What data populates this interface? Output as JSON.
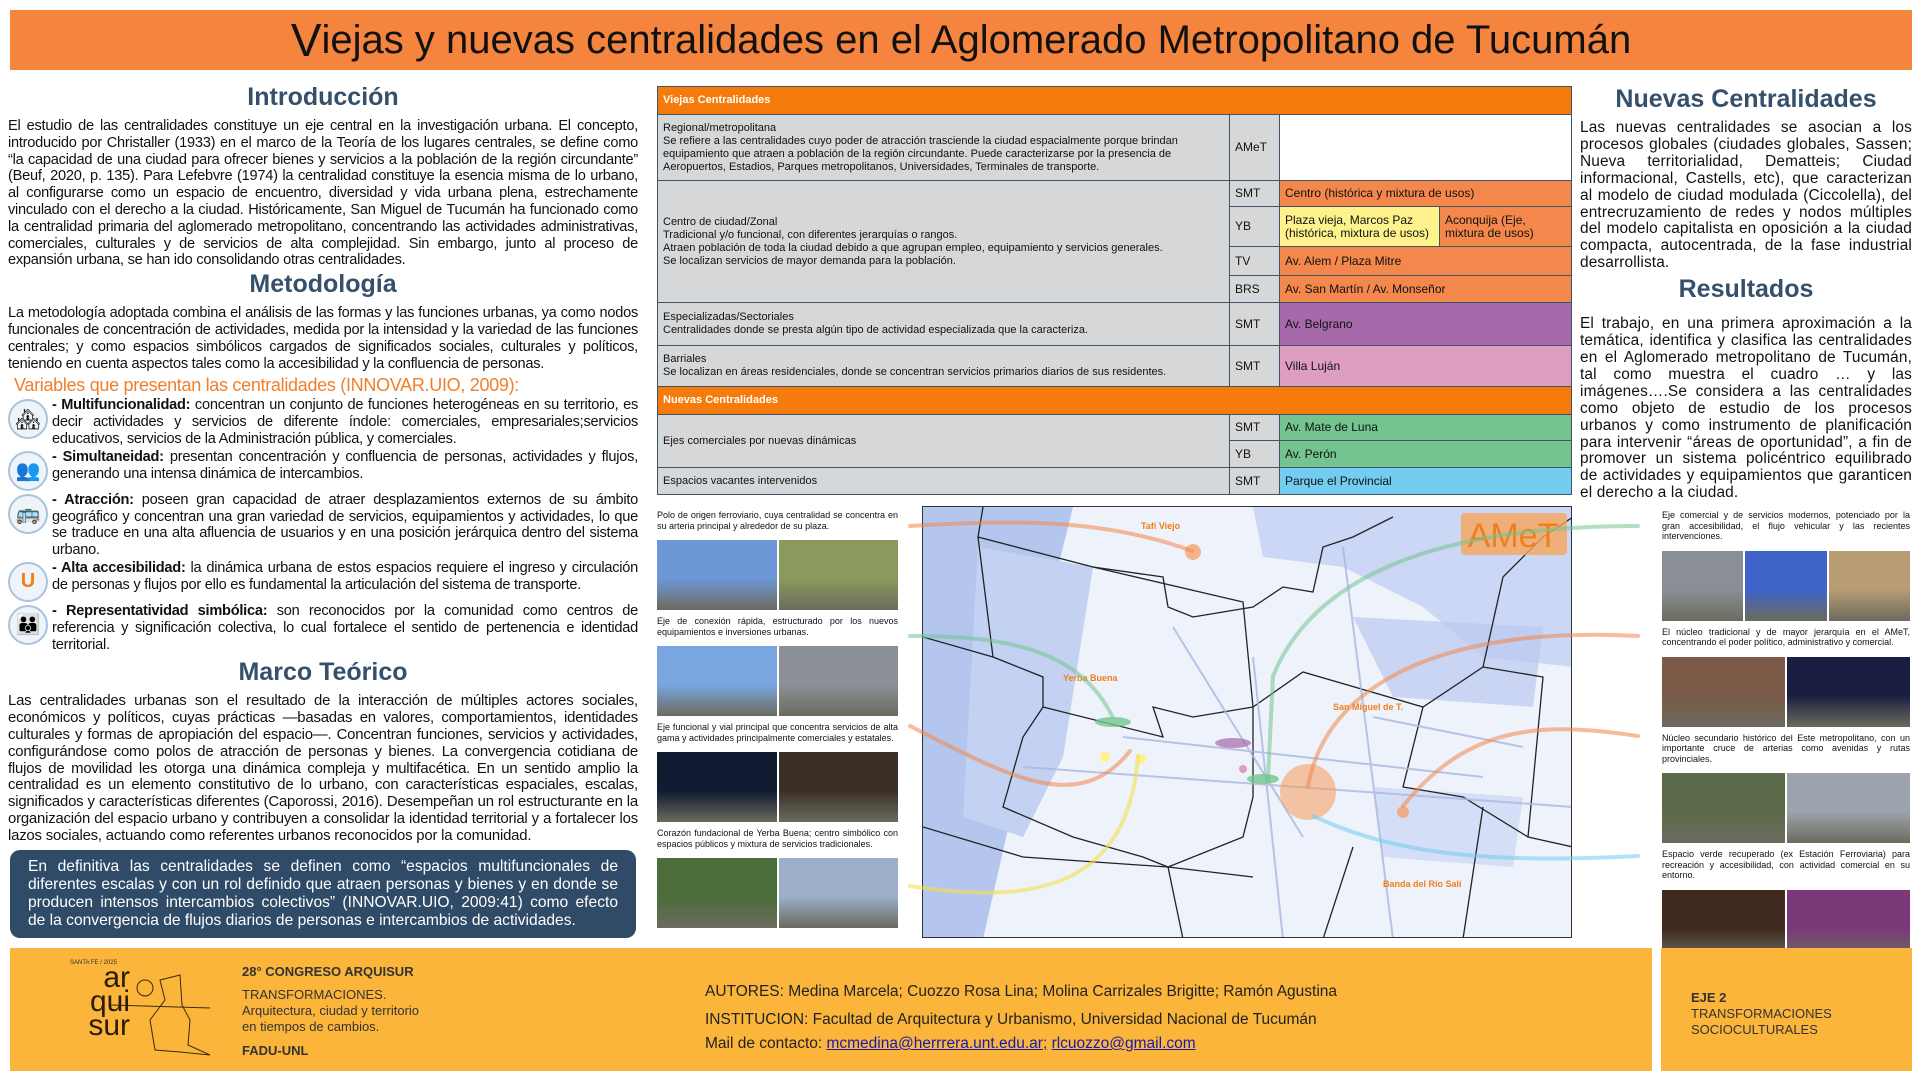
{
  "title": {
    "first_letter": "V",
    "rest": "iejas y nuevas centralidades en el Aglomerado Metropolitano de Tucumán"
  },
  "intro": {
    "heading": "Introducción",
    "text": "El estudio de las centralidades constituye un eje central en la investigación urbana. El concepto, introducido por Christaller (1933) en el marco de la Teoría de los lugares centrales, se define como “la capacidad de una ciudad para ofrecer bienes y servicios a la población de la región circundante” (Beuf, 2020, p. 135). Para Lefebvre (1974) la  centralidad constituye la esencia misma de lo urbano, al configurarse como un espacio de encuentro, diversidad y vida urbana plena, estrechamente vinculado con el derecho a la ciudad. Históricamente, San Miguel de Tucumán ha funcionado como la centralidad primaria del aglomerado metropolitano, concentrando las actividades administrativas, comerciales, culturales y de servicios de alta complejidad. Sin embargo, junto al proceso de expansión urbana, se han ido consolidando otras centralidades."
  },
  "metodologia": {
    "heading": "Metodología",
    "text": "La metodología adoptada combina el análisis de las formas y las funciones urbanas, ya como nodos funcionales de concentración de actividades, medida por la intensidad y la variedad de las funciones centrales; y como espacios simbólicos cargados de significados sociales, culturales y políticos, teniendo en cuenta aspectos tales como la accesibilidad y la confluencia de personas.",
    "variables_title": "Variables que presentan las centralidades (INNOVAR.UIO, 2009):",
    "variables": [
      {
        "icon": "buildings-icon",
        "glyph": "🏘",
        "label": "- Multifuncionalidad:",
        "text": " concentran un conjunto de funciones heterogéneas en su territorio, es decir actividades y servicios de diferente índole: comerciales, empresariales;servicios educativos, servicios de la Administración pública, y comerciales."
      },
      {
        "icon": "people-icon",
        "glyph": "👥",
        "label": "- Simultaneidad:",
        "text": " presentan concentración y confluencia de personas, actividades y flujos, generando una intensa dinámica de intercambios."
      },
      {
        "icon": "bus-icon",
        "glyph": "🚌",
        "label": "- Atracción:",
        "text": " poseen gran capacidad de atraer desplazamientos externos de su ámbito geográfico y concentran una gran variedad de servicios, equipamientos y actividades, lo que se traduce en una alta afluencia de usuarios y en una posición jerárquica dentro del sistema urbano."
      },
      {
        "icon": "magnet-icon",
        "glyph": "U",
        "label": "- Alta accesibilidad:",
        "text": " la dinámica urbana de estos espacios requiere el ingreso y circulación de personas y flujos por ello es fundamental la articulación del sistema de transporte."
      },
      {
        "icon": "community-icon",
        "glyph": "👪",
        "label": "- Representatividad simbólica:",
        "text": " son reconocidos por la comunidad como centros de referencia y significación colectiva, lo cual fortalece el sentido de pertenencia e identidad territorial."
      }
    ]
  },
  "marco": {
    "heading": "Marco Teórico",
    "text": "Las centralidades urbanas son el resultado de la interacción de múltiples actores sociales, económicos y políticos, cuyas prácticas —basadas en valores, comportamientos, identidades culturales y formas de apropiación del espacio—. Concentran funciones, servicios y actividades, configurándose como polos de atracción de personas y bienes. La convergencia cotidiana de flujos de movilidad les otorga una dinámica compleja y multifacética. En un sentido amplio la centralidad es un elemento constitutivo de lo urbano, con características espaciales, escalas, significados y características diferentes (Caporossi, 2016). Desempeñan  un rol estructurante en la organización del espacio urbano y contribuyen a consolidar la identidad territorial y a fortalecer los lazos sociales, actuando como referentes urbanos reconocidos por la comunidad.",
    "quote": "En definitiva las centralidades se definen como “espacios multifuncionales de diferentes escalas y con un rol definido que atraen personas y bienes y en donde se producen intensos intercambios colectivos” (INNOVAR.UIO, 2009:41)  como efecto de la convergencia de flujos diarios de personas e intercambios de actividades."
  },
  "table": {
    "viejas_header": "Viejas Centralidades",
    "nuevas_header": "Nuevas Centralidades",
    "regional": {
      "title": "Regional/metropolitana",
      "desc": "Se refiere a las centralidades cuyo poder de atracción trasciende la ciudad espacialmente porque brindan equipamiento que atraen a población de la región circundante. Puede caracterizarse por la presencia de Aeropuertos, Estadios,  Parques metropolitanos,  Universidades, Terminales de transporte.",
      "code": "AMeT"
    },
    "centro": {
      "title": "Centro de ciudad/Zonal",
      "desc1": "Tradicional y/o funcional, con diferentes jerarquías o rangos.",
      "desc2": "Atraen población de toda la ciudad debido a que agrupan empleo, equipamiento y servicios generales.",
      "desc3": "Se localizan servicios de mayor demanda para la población.",
      "rows": [
        {
          "code": "SMT",
          "value": "Centro (histórica y mixtura de usos)"
        },
        {
          "code": "YB",
          "value": "Plaza vieja, Marcos Paz (histórica, mixtura de usos)",
          "value2": "Aconquija (Eje, mixtura de usos)"
        },
        {
          "code": "TV",
          "value": "Av. Alem / Plaza Mitre"
        },
        {
          "code": "BRS",
          "value": "Av. San Martín / Av. Monseñor"
        }
      ]
    },
    "especializadas": {
      "title": "Especializadas/Sectoriales",
      "desc": "Centralidades donde se presta algún tipo de actividad especializada que la caracteriza.",
      "code": "SMT",
      "value": "Av. Belgrano"
    },
    "barriales": {
      "title": "Barriales",
      "desc": "Se localizan en áreas residenciales, donde se concentran servicios primarios diarios de sus residentes.",
      "code": "SMT",
      "value": "Villa Luján"
    },
    "ejes": {
      "title": "Ejes comerciales por nuevas dinámicas",
      "rows": [
        {
          "code": "SMT",
          "value": "Av. Mate de Luna"
        },
        {
          "code": "YB",
          "value": "Av. Perón"
        }
      ]
    },
    "espacios": {
      "title": "Espacios vacantes intervenidos",
      "code": "SMT",
      "value": "Parque el Provincial"
    },
    "colors": {
      "header": "#f57c0c",
      "centro": "#f4874b",
      "yb_plaza": "#fdf28c",
      "especializadas": "#a66aab",
      "barriales": "#dd9ec2",
      "ejes": "#74c490",
      "espacios": "#72cdf0",
      "gray": "#d6d7d9"
    }
  },
  "captions_left": [
    "Polo de origen ferroviario, cuya centralidad se concentra en su arteria principal y alrededor de su plaza.",
    "Eje de conexión rápida, estructurado por los nuevos equipamientos e inversiones urbanas.",
    "Eje funcional y vial principal que concentra servicios de alta gama y actividades principalmente comerciales y estatales.",
    "Corazón fundacional de Yerba Buena; centro simbólico con espacios públicos y mixtura de servicios tradicionales."
  ],
  "captions_right": [
    "Eje comercial y de servicios modernos, potenciado por la gran accesibilidad, el flujo vehicular y las recientes intervenciones.",
    "El núcleo tradicional y de mayor jerarquía en el AMeT, concentrando el poder político, administrativo y comercial.",
    "Núcleo secundario histórico del Este metropolitano, con un importante cruce de arterias como avenidas y rutas provinciales.",
    "Espacio verde recuperado (ex Estación Ferroviaria) para recreación y accesibilidad, con actividad comercial en su entorno."
  ],
  "map": {
    "badge": "AMeT",
    "labels": [
      "Tafí Viejo",
      "Yerba Buena",
      "San Miguel de T.",
      "Banda del Río Salí"
    ]
  },
  "nuevas": {
    "heading": "Nuevas Centralidades",
    "text": "Las nuevas centralidades se asocian a los procesos globales (ciudades globales, Sassen; Nueva territorialidad, Dematteis; Ciudad informacional, Castells, etc), que caracterizan al modelo de ciudad modulada (Ciccolella), del entrecruzamiento de redes y nodos múltiples del modelo capitalista en oposición a la ciudad compacta, autocentrada, de la fase industrial desarrollista."
  },
  "resultados": {
    "heading": "Resultados",
    "text": "El trabajo, en una primera aproximación a la temática, identifica y clasifica las centralidades en el Aglomerado metropolitano de Tucumán, tal como muestra el cuadro … y las imágenes….Se considera a las centralidades como objeto de estudio de los procesos urbanos y como instrumento de planificación para intervenir “áreas de oportunidad”, a fin de promover un sistema policéntrico equilibrado de actividades y equipamientos que garanticen el derecho a la ciudad."
  },
  "footer": {
    "logo": {
      "top": "SANTA FE / 2025",
      "l1": "ar",
      "l2": "qui",
      "l3": "sur"
    },
    "congreso": "28° CONGRESO ARQUISUR",
    "tema1": "TRANSFORMACIONES.",
    "tema2": "Arquitectura, ciudad y territorio",
    "tema3": "en tiempos de cambios.",
    "org": "FADU-UNL",
    "autores": "AUTORES: Medina Marcela; Cuozzo Rosa Lina; Molina Carrizales Brigitte; Ramón Agustina",
    "institucion": "INSTITUCION: Facultad de Arquitectura y Urbanismo, Universidad Nacional de Tucumán",
    "mail_label": "Mail de contacto: ",
    "mail1": "mcmedina@herrrera.unt.edu.ar;",
    "mail2": "rlcuozzo@gmail.com",
    "eje1": "EJE 2",
    "eje2": "TRANSFORMACIONES",
    "eje3": "SOCIOCULTURALES"
  }
}
